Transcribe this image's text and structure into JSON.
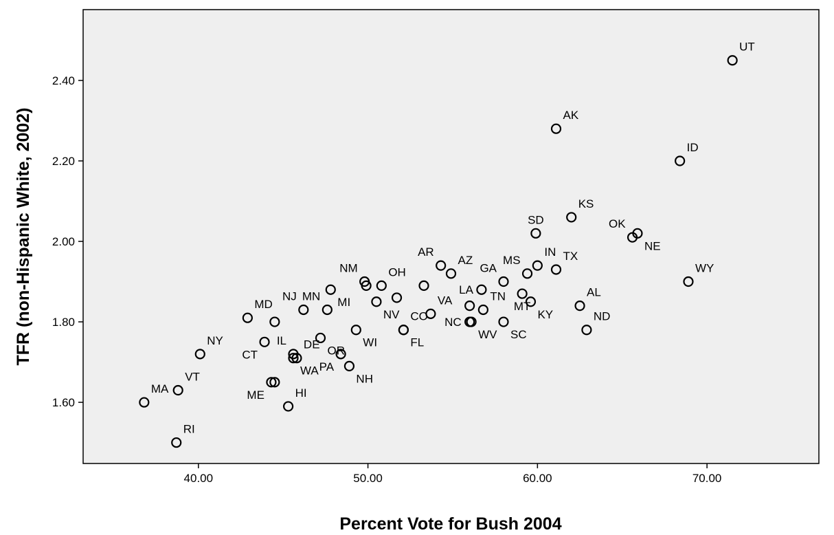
{
  "chart_data": {
    "type": "scatter",
    "title": "",
    "xlabel": "Percent Vote for Bush 2004",
    "ylabel": "TFR (non-Hispanic White, 2002)",
    "xlim": [
      33.2,
      76.6
    ],
    "ylim": [
      1.448,
      2.576
    ],
    "x_ticks": [
      40,
      50,
      60,
      70
    ],
    "x_tick_labels": [
      "40.00",
      "50.00",
      "60.00",
      "70.00"
    ],
    "y_ticks": [
      1.6,
      1.8,
      2.0,
      2.2,
      2.4
    ],
    "y_tick_labels": [
      "1.60",
      "1.80",
      "2.00",
      "2.20",
      "2.40"
    ],
    "grid": false,
    "background": "#efefef",
    "points": [
      {
        "label": "UT",
        "x": 71.5,
        "y": 2.45,
        "anchor": "ne"
      },
      {
        "label": "AK",
        "x": 61.1,
        "y": 2.28,
        "anchor": "ne"
      },
      {
        "label": "ID",
        "x": 68.4,
        "y": 2.2,
        "anchor": "ne"
      },
      {
        "label": "KS",
        "x": 62.0,
        "y": 2.06,
        "anchor": "ne"
      },
      {
        "label": "SD",
        "x": 59.9,
        "y": 2.02,
        "anchor": "n"
      },
      {
        "label": "OK",
        "x": 65.6,
        "y": 2.01,
        "anchor": "nw"
      },
      {
        "label": "NE",
        "x": 65.9,
        "y": 2.02,
        "anchor": "se"
      },
      {
        "label": "WY",
        "x": 68.9,
        "y": 1.9,
        "anchor": "ne"
      },
      {
        "label": "IN",
        "x": 60.0,
        "y": 1.94,
        "anchor": "ne"
      },
      {
        "label": "TX",
        "x": 61.1,
        "y": 1.93,
        "anchor": "ne"
      },
      {
        "label": "MS",
        "x": 59.4,
        "y": 1.92,
        "anchor": "nw"
      },
      {
        "label": "GA",
        "x": 58.0,
        "y": 1.9,
        "anchor": "nw"
      },
      {
        "label": "AR",
        "x": 54.3,
        "y": 1.94,
        "anchor": "nw"
      },
      {
        "label": "AZ",
        "x": 54.9,
        "y": 1.92,
        "anchor": "ne"
      },
      {
        "label": "OH",
        "x": 50.8,
        "y": 1.89,
        "anchor": "ne"
      },
      {
        "label": "NM",
        "x": 49.8,
        "y": 1.9,
        "anchor": "nw"
      },
      {
        "label": "",
        "x": 49.9,
        "y": 1.89,
        "anchor": "n"
      },
      {
        "label": "",
        "x": 51.7,
        "y": 1.86,
        "anchor": "n"
      },
      {
        "label": "",
        "x": 53.3,
        "y": 1.89,
        "anchor": "n"
      },
      {
        "label": "VA",
        "x": 53.7,
        "y": 1.82,
        "anchor": "ne"
      },
      {
        "label": "CO",
        "x": 52.1,
        "y": 1.78,
        "anchor": "ne"
      },
      {
        "label": "FL",
        "x": 52.1,
        "y": 1.78,
        "anchor": "se"
      },
      {
        "label": "NV",
        "x": 50.5,
        "y": 1.85,
        "anchor": "se"
      },
      {
        "label": "WI",
        "x": 49.3,
        "y": 1.78,
        "anchor": "se"
      },
      {
        "label": "LA",
        "x": 56.7,
        "y": 1.88,
        "anchor": "w"
      },
      {
        "label": "TN",
        "x": 56.8,
        "y": 1.83,
        "anchor": "ne"
      },
      {
        "label": "",
        "x": 56.0,
        "y": 1.84,
        "anchor": "n"
      },
      {
        "label": "NC",
        "x": 56.0,
        "y": 1.8,
        "anchor": "w"
      },
      {
        "label": "WV",
        "x": 56.1,
        "y": 1.8,
        "anchor": "se"
      },
      {
        "label": "SC",
        "x": 58.0,
        "y": 1.8,
        "anchor": "se"
      },
      {
        "label": "MT",
        "x": 59.1,
        "y": 1.87,
        "anchor": "s"
      },
      {
        "label": "KY",
        "x": 59.6,
        "y": 1.85,
        "anchor": "se"
      },
      {
        "label": "AL",
        "x": 62.5,
        "y": 1.84,
        "anchor": "ne"
      },
      {
        "label": "ND",
        "x": 62.9,
        "y": 1.78,
        "anchor": "ne"
      },
      {
        "label": "MN",
        "x": 47.6,
        "y": 1.83,
        "anchor": "nw"
      },
      {
        "label": "MI",
        "x": 47.8,
        "y": 1.88,
        "anchor": "se"
      },
      {
        "label": "NJ",
        "x": 46.2,
        "y": 1.83,
        "anchor": "nw"
      },
      {
        "label": "MD",
        "x": 42.9,
        "y": 1.81,
        "anchor": "ne"
      },
      {
        "label": "",
        "x": 44.5,
        "y": 1.8,
        "anchor": "n"
      },
      {
        "label": "NY",
        "x": 40.1,
        "y": 1.72,
        "anchor": "ne"
      },
      {
        "label": "CT",
        "x": 43.9,
        "y": 1.75,
        "anchor": "sw"
      },
      {
        "label": "IL",
        "x": 45.6,
        "y": 1.72,
        "anchor": "nw"
      },
      {
        "label": "DE",
        "x": 45.8,
        "y": 1.71,
        "anchor": "ne"
      },
      {
        "label": "OR",
        "x": 47.2,
        "y": 1.76,
        "anchor": "se"
      },
      {
        "label": "WA",
        "x": 45.6,
        "y": 1.71,
        "anchor": "se"
      },
      {
        "label": "PA",
        "x": 48.4,
        "y": 1.72,
        "anchor": "sw"
      },
      {
        "label": "NH",
        "x": 48.9,
        "y": 1.69,
        "anchor": "se"
      },
      {
        "label": "ME",
        "x": 44.3,
        "y": 1.65,
        "anchor": "sw"
      },
      {
        "label": "",
        "x": 44.5,
        "y": 1.65,
        "anchor": "n"
      },
      {
        "label": "HI",
        "x": 45.3,
        "y": 1.59,
        "anchor": "ne"
      },
      {
        "label": "VT",
        "x": 38.8,
        "y": 1.63,
        "anchor": "ne"
      },
      {
        "label": "MA",
        "x": 36.8,
        "y": 1.6,
        "anchor": "ne"
      },
      {
        "label": "RI",
        "x": 38.7,
        "y": 1.5,
        "anchor": "ne"
      }
    ]
  }
}
